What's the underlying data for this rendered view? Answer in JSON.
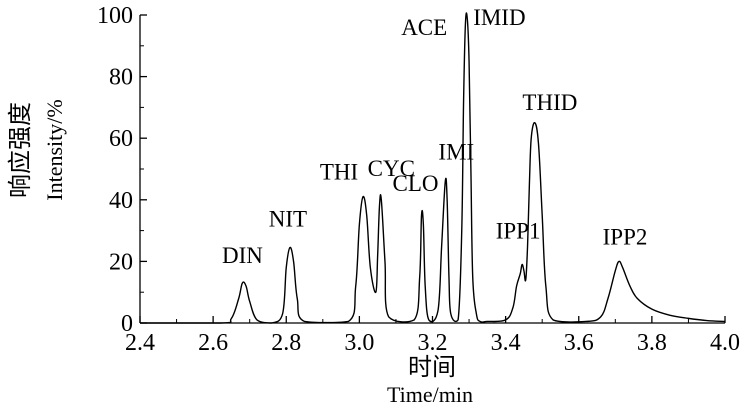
{
  "chart_data": {
    "type": "line",
    "title": "",
    "xlabel_cn": "时间",
    "xlabel": "Time/min",
    "ylabel_cn": "响应强度",
    "ylabel": "Intensity/%",
    "xlim": [
      2.4,
      4.0
    ],
    "ylim": [
      0,
      100
    ],
    "x_ticks": [
      2.4,
      2.6,
      2.8,
      3.0,
      3.2,
      3.4,
      3.6,
      3.8,
      4.0
    ],
    "x_tick_labels": [
      "2.4",
      "2.6",
      "2.8",
      "3.0",
      "3.2",
      "3.4",
      "3.6",
      "3.8",
      "4.0"
    ],
    "y_ticks": [
      0,
      20,
      40,
      60,
      80,
      100
    ],
    "y_tick_labels": [
      "0",
      "20",
      "40",
      "60",
      "80",
      "100"
    ],
    "grid": false,
    "series": [
      {
        "color": "#000000",
        "x": [
          2.4,
          2.62,
          2.65,
          2.67,
          2.68,
          2.69,
          2.7,
          2.72,
          2.76,
          2.79,
          2.8,
          2.81,
          2.82,
          2.83,
          2.85,
          2.97,
          2.99,
          3.0,
          3.01,
          3.02,
          3.03,
          3.045,
          3.05,
          3.055,
          3.06,
          3.07,
          3.08,
          3.15,
          3.165,
          3.17,
          3.175,
          3.18,
          3.19,
          3.215,
          3.225,
          3.235,
          3.24,
          3.245,
          3.25,
          3.27,
          3.28,
          3.285,
          3.29,
          3.295,
          3.3,
          3.305,
          3.31,
          3.32,
          3.33,
          3.35,
          3.4,
          3.42,
          3.43,
          3.44,
          3.445,
          3.45,
          3.455,
          3.46,
          3.465,
          3.47,
          3.48,
          3.49,
          3.5,
          3.51,
          3.53,
          3.62,
          3.66,
          3.68,
          3.7,
          3.71,
          3.72,
          3.74,
          3.76,
          3.8,
          3.85,
          3.9,
          3.95,
          4.0
        ],
        "y": [
          0,
          0,
          1.5,
          8,
          13,
          12,
          7,
          1,
          0,
          3,
          18,
          24.5,
          20,
          8,
          0.5,
          0.5,
          12,
          32,
          41,
          35,
          18,
          10,
          22,
          38,
          40,
          20,
          2,
          1,
          15,
          35,
          32,
          12,
          1,
          4,
          25,
          46,
          40,
          15,
          3,
          1,
          30,
          72,
          97,
          99,
          85,
          50,
          15,
          3,
          0.5,
          0.5,
          1,
          5,
          12,
          16,
          19,
          17,
          14,
          25,
          45,
          60,
          65,
          58,
          35,
          12,
          1,
          0.5,
          2,
          8,
          17,
          20,
          18,
          12,
          8,
          4.5,
          2.5,
          1.5,
          0.8,
          0.5
        ]
      }
    ],
    "annotations": [
      {
        "text": "DIN",
        "x": 2.68,
        "y": 13
      },
      {
        "text": "NIT",
        "x": 2.81,
        "y": 24.5
      },
      {
        "text": "THI",
        "x": 3.01,
        "y": 41
      },
      {
        "text": "CYC",
        "x": 3.06,
        "y": 40
      },
      {
        "text": "CLO",
        "x": 3.17,
        "y": 35
      },
      {
        "text": "IMI",
        "x": 3.235,
        "y": 46
      },
      {
        "text": "ACE",
        "x": 3.295,
        "y": 99
      },
      {
        "text": "IMID",
        "x": 3.295,
        "y": 99
      },
      {
        "text": "IPP1",
        "x": 3.445,
        "y": 19
      },
      {
        "text": "THID",
        "x": 3.48,
        "y": 65
      },
      {
        "text": "IPP2",
        "x": 3.71,
        "y": 20
      }
    ]
  }
}
